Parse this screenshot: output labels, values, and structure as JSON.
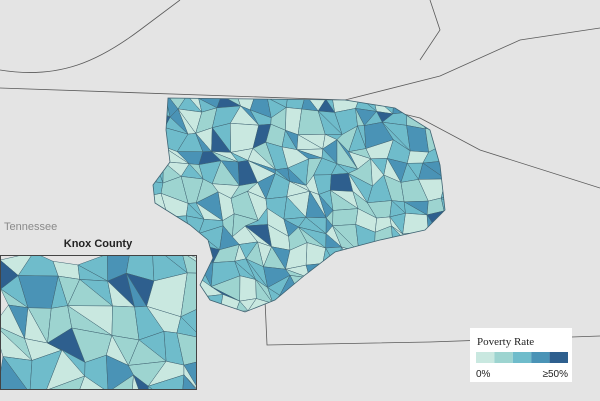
{
  "map": {
    "state_label": "Tennessee",
    "inset_title": "Knox County",
    "legend": {
      "title": "Poverty Rate",
      "min_label": "0%",
      "max_label": "≥50%",
      "colors": [
        "#c9e8e0",
        "#9dd4d0",
        "#6fbccb",
        "#4a93b6",
        "#2e5f8e"
      ]
    }
  }
}
